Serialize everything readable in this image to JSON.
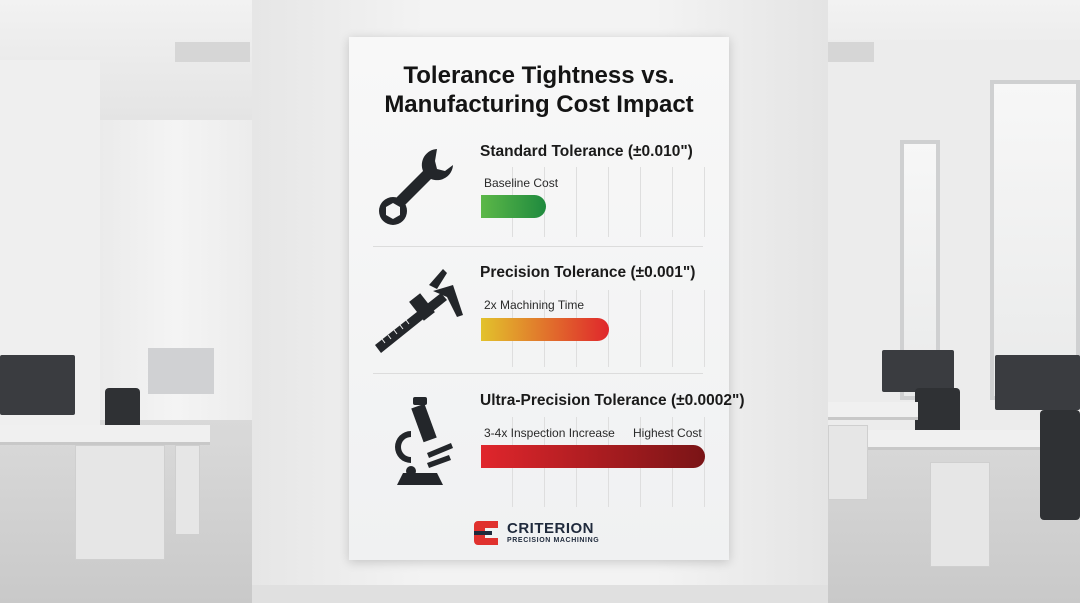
{
  "poster": {
    "title_line1": "Tolerance Tightness vs.",
    "title_line2": "Manufacturing Cost Impact",
    "sections": [
      {
        "title": "Standard Tolerance (±0.010\")",
        "icon": "wrench-icon",
        "labels": [
          "Baseline Cost"
        ],
        "bar_level": 0.29,
        "bar_colors": [
          "#5cb848",
          "#1f8a3e"
        ]
      },
      {
        "title": "Precision Tolerance (±0.001\")",
        "icon": "caliper-icon",
        "labels": [
          "2x Machining Time"
        ],
        "bar_level": 0.57,
        "bar_colors": [
          "#e2c22c",
          "#e0262c"
        ]
      },
      {
        "title": "Ultra-Precision Tolerance (±0.0002\")",
        "icon": "microscope-icon",
        "labels": [
          "3-4x Inspection Increase",
          "Highest Cost"
        ],
        "bar_level": 1.0,
        "bar_colors": [
          "#e0262c",
          "#7a1416"
        ]
      }
    ],
    "logo": {
      "name": "CRITERION",
      "tagline": "PRECISION MACHINING",
      "accent": "#e0312e",
      "text_color": "#1f2a3c"
    }
  }
}
